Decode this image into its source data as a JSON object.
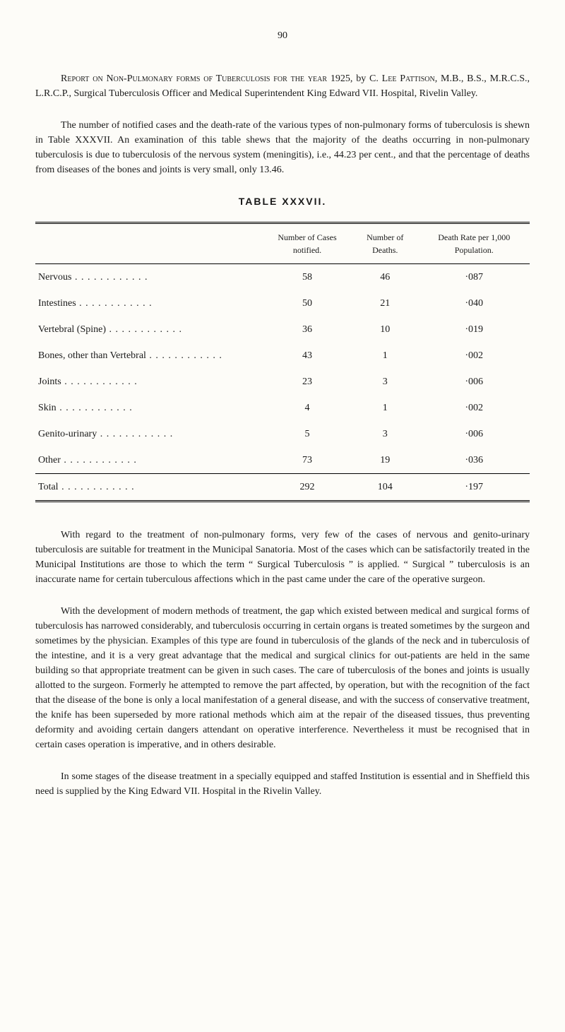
{
  "page_number": "90",
  "intro_para_html": "<span class='smallcaps'>Report on Non-Pulmonary forms of Tuberculosis for the year</span> 1925, by C. <span class='smallcaps'>Lee Pattison</span>, M.B., B.S., M.R.C.S., L.R.C.P., Surgical Tuberculosis Officer and Medical Superintendent King Edward VII. Hospital, Rivelin Valley.",
  "para2": "The number of notified cases and the death-rate of the various types of non-pulmonary forms of tuberculosis is shewn in Table XXXVII.  An examination of this table shews that the majority of the deaths occurring in non-pulmonary tuberculosis is due to tuberculosis of the nervous system (meningitis), i.e., 44.23 per cent., and that the percentage of deaths from diseases of the bones and joints is very small, only 13.46.",
  "table": {
    "title": "TABLE  XXXVII.",
    "columns": [
      "",
      "Number of Cases notified.",
      "Number of Deaths.",
      "Death Rate per 1,000 Population."
    ],
    "rows": [
      {
        "label": "Nervous",
        "c1": "58",
        "c2": "46",
        "c3": "·087"
      },
      {
        "label": "Intestines",
        "c1": "50",
        "c2": "21",
        "c3": "·040"
      },
      {
        "label": "Vertebral (Spine)",
        "c1": "36",
        "c2": "10",
        "c3": "·019"
      },
      {
        "label": "Bones, other than Vertebral",
        "c1": "43",
        "c2": "1",
        "c3": "·002"
      },
      {
        "label": "Joints",
        "c1": "23",
        "c2": "3",
        "c3": "·006"
      },
      {
        "label": "Skin",
        "c1": "4",
        "c2": "1",
        "c3": "·002"
      },
      {
        "label": "Genito-urinary",
        "c1": "5",
        "c2": "3",
        "c3": "·006"
      },
      {
        "label": "Other",
        "c1": "73",
        "c2": "19",
        "c3": "·036"
      }
    ],
    "total": {
      "label": "Total",
      "c1": "292",
      "c2": "104",
      "c3": "·197"
    }
  },
  "para3": "With regard to the treatment of non-pulmonary forms, very few of the cases of nervous and genito-urinary tuberculosis are suitable for treatment in the Municipal Sanatoria.  Most of the cases which can be satisfactorily treated in the Municipal Institutions are those to which the term “ Surgical Tuberculosis ” is applied.  “ Surgical ” tuberculosis is an inaccurate name for certain tuberculous affections which in the past came under the care of the operative surgeon.",
  "para4": "With the development of modern methods of treatment, the gap which existed between medical and surgical forms of tuberculosis has narrowed considerably, and tuberculosis occurring in certain organs is treated sometimes by the surgeon and sometimes by the physician.  Examples of this type are found in tuberculosis of the glands of the neck and in tuberculosis of the intestine, and it is a very great advantage that the medical and surgical clinics for out-patients are held in the same building so that appropriate treatment can be given in such cases.  The care of tuberculosis of the bones and joints is usually allotted to the surgeon.  Formerly he attempted to remove the part affected, by operation, but with the recognition of the fact that the disease of the bone is only a local manifestation of a general disease, and with the success of conservative treatment, the knife has been superseded by more rational methods which aim at the repair of the diseased tissues, thus preventing deformity and avoiding certain dangers attendant on operative interference.  Nevertheless it must be recognised that in certain cases operation is imperative, and in others desirable.",
  "para5": "In some stages of the disease treatment in a specially equipped and staffed Institution is essential and in Sheffield this need is supplied by the King Edward VII. Hospital in the Rivelin Valley."
}
